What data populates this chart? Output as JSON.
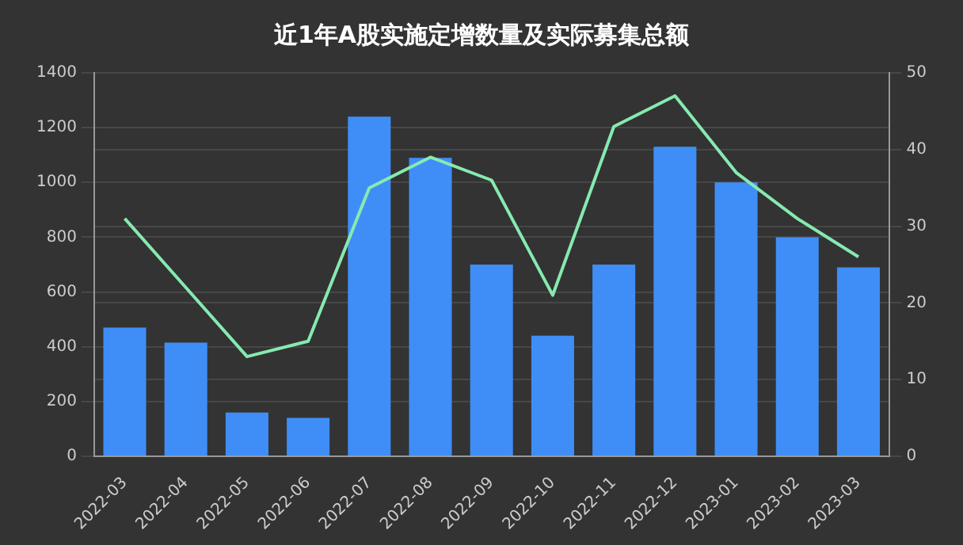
{
  "chart_data": {
    "type": "bar",
    "title": "近1年A股实施定增数量及实际募集总额",
    "categories": [
      "2022-03",
      "2022-04",
      "2022-05",
      "2022-06",
      "2022-07",
      "2022-08",
      "2022-09",
      "2022-10",
      "2022-11",
      "2022-12",
      "2023-01",
      "2023-02",
      "2023-03"
    ],
    "series": [
      {
        "color": "#3f8ef7",
        "values": [
          470,
          415,
          160,
          140,
          1240,
          1090,
          700,
          440,
          700,
          1130,
          1000,
          800,
          690
        ]
      },
      {
        "type": "line",
        "axis": "y2",
        "color": "#86eab0",
        "values": [
          31,
          22,
          13,
          15,
          35,
          39,
          36,
          21,
          43,
          47,
          37,
          31,
          26
        ]
      }
    ],
    "ylim": [
      0,
      1400
    ],
    "yticks": [
      0,
      200,
      400,
      600,
      800,
      1000,
      1200,
      1400
    ],
    "y2lim": [
      0,
      50
    ],
    "y2ticks": [
      0,
      10,
      20,
      30,
      40,
      50
    ],
    "grid": "y",
    "legend": false,
    "marker": "none"
  }
}
